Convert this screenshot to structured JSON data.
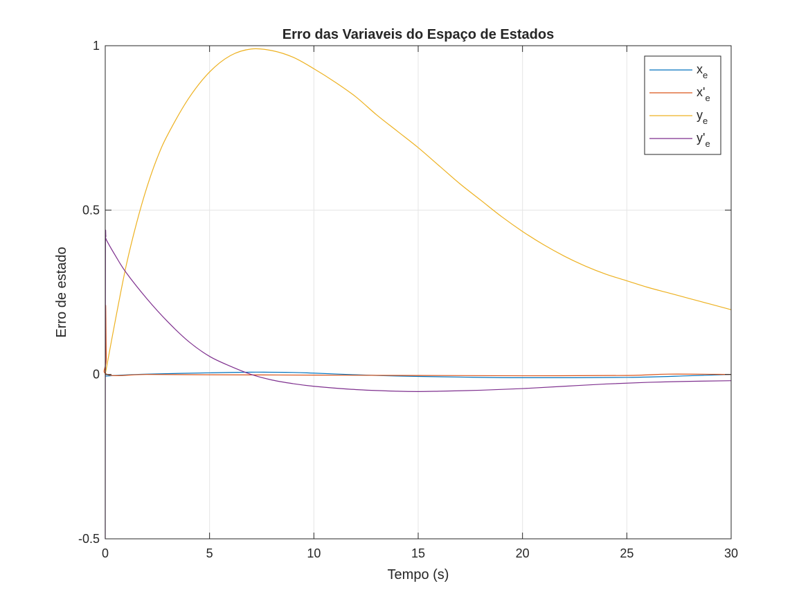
{
  "chart_data": {
    "type": "line",
    "title": "Erro das Variaveis do Espaço de Estados",
    "xlabel": "Tempo (s)",
    "ylabel": "Erro de estado",
    "xlim": [
      0,
      30
    ],
    "ylim": [
      -0.5,
      1
    ],
    "xticks": [
      0,
      5,
      10,
      15,
      20,
      25,
      30
    ],
    "yticks": [
      -0.5,
      0,
      0.5,
      1
    ],
    "xtick_labels": [
      "0",
      "5",
      "10",
      "15",
      "20",
      "25",
      "30"
    ],
    "ytick_labels": [
      "-0.5",
      "0",
      "0.5",
      "1"
    ],
    "grid": "vertical",
    "legend_position": "top-right",
    "series": [
      {
        "name": "x_e",
        "legend_main": "x",
        "legend_sub": "e",
        "color": "#0072BD",
        "x": [
          0,
          0.5,
          2,
          5,
          7,
          9,
          10,
          12,
          13.5,
          15,
          17,
          20,
          25,
          28,
          30
        ],
        "y": [
          -0.005,
          -0.003,
          0.001,
          0.005,
          0.007,
          0.006,
          0.004,
          -0.001,
          -0.004,
          -0.006,
          -0.008,
          -0.01,
          -0.009,
          -0.004,
          0
        ]
      },
      {
        "name": "x'_e",
        "legend_main": "x'",
        "legend_sub": "e",
        "color": "#D95319",
        "x": [
          0,
          0.02,
          0.05,
          0.1,
          2,
          5,
          10,
          15,
          20,
          25,
          27,
          30
        ],
        "y": [
          0,
          0.21,
          0.05,
          0,
          0,
          -0.001,
          -0.002,
          -0.003,
          -0.004,
          -0.003,
          0.001,
          0
        ]
      },
      {
        "name": "y_e",
        "legend_main": "y",
        "legend_sub": "e",
        "color": "#EDB120",
        "x": [
          0,
          0.5,
          1,
          1.5,
          2,
          2.5,
          3,
          4,
          5,
          6,
          7,
          8,
          9,
          10,
          11,
          12,
          13,
          14,
          15,
          16,
          17,
          18,
          19,
          20,
          21,
          22,
          23,
          24,
          25,
          26,
          27,
          28,
          29,
          30
        ],
        "y": [
          0,
          0.17,
          0.33,
          0.46,
          0.57,
          0.66,
          0.73,
          0.84,
          0.92,
          0.97,
          0.99,
          0.985,
          0.965,
          0.93,
          0.89,
          0.845,
          0.79,
          0.74,
          0.69,
          0.635,
          0.58,
          0.53,
          0.48,
          0.435,
          0.395,
          0.36,
          0.33,
          0.305,
          0.285,
          0.265,
          0.248,
          0.231,
          0.214,
          0.197
        ]
      },
      {
        "name": "y'_e",
        "legend_main": "y'",
        "legend_sub": "e",
        "color": "#7E2F8E",
        "x": [
          0,
          0.01,
          0.03,
          0.05,
          0.5,
          1,
          2,
          3,
          4,
          5,
          6,
          7,
          8,
          9,
          10,
          12,
          14,
          15,
          16,
          18,
          20,
          22,
          24,
          26,
          28,
          30
        ],
        "y": [
          -0.5,
          0.35,
          0.42,
          0.41,
          0.36,
          0.31,
          0.23,
          0.16,
          0.1,
          0.055,
          0.025,
          0.0,
          -0.017,
          -0.028,
          -0.036,
          -0.046,
          -0.051,
          -0.052,
          -0.051,
          -0.048,
          -0.043,
          -0.036,
          -0.029,
          -0.024,
          -0.021,
          -0.019
        ]
      }
    ]
  }
}
